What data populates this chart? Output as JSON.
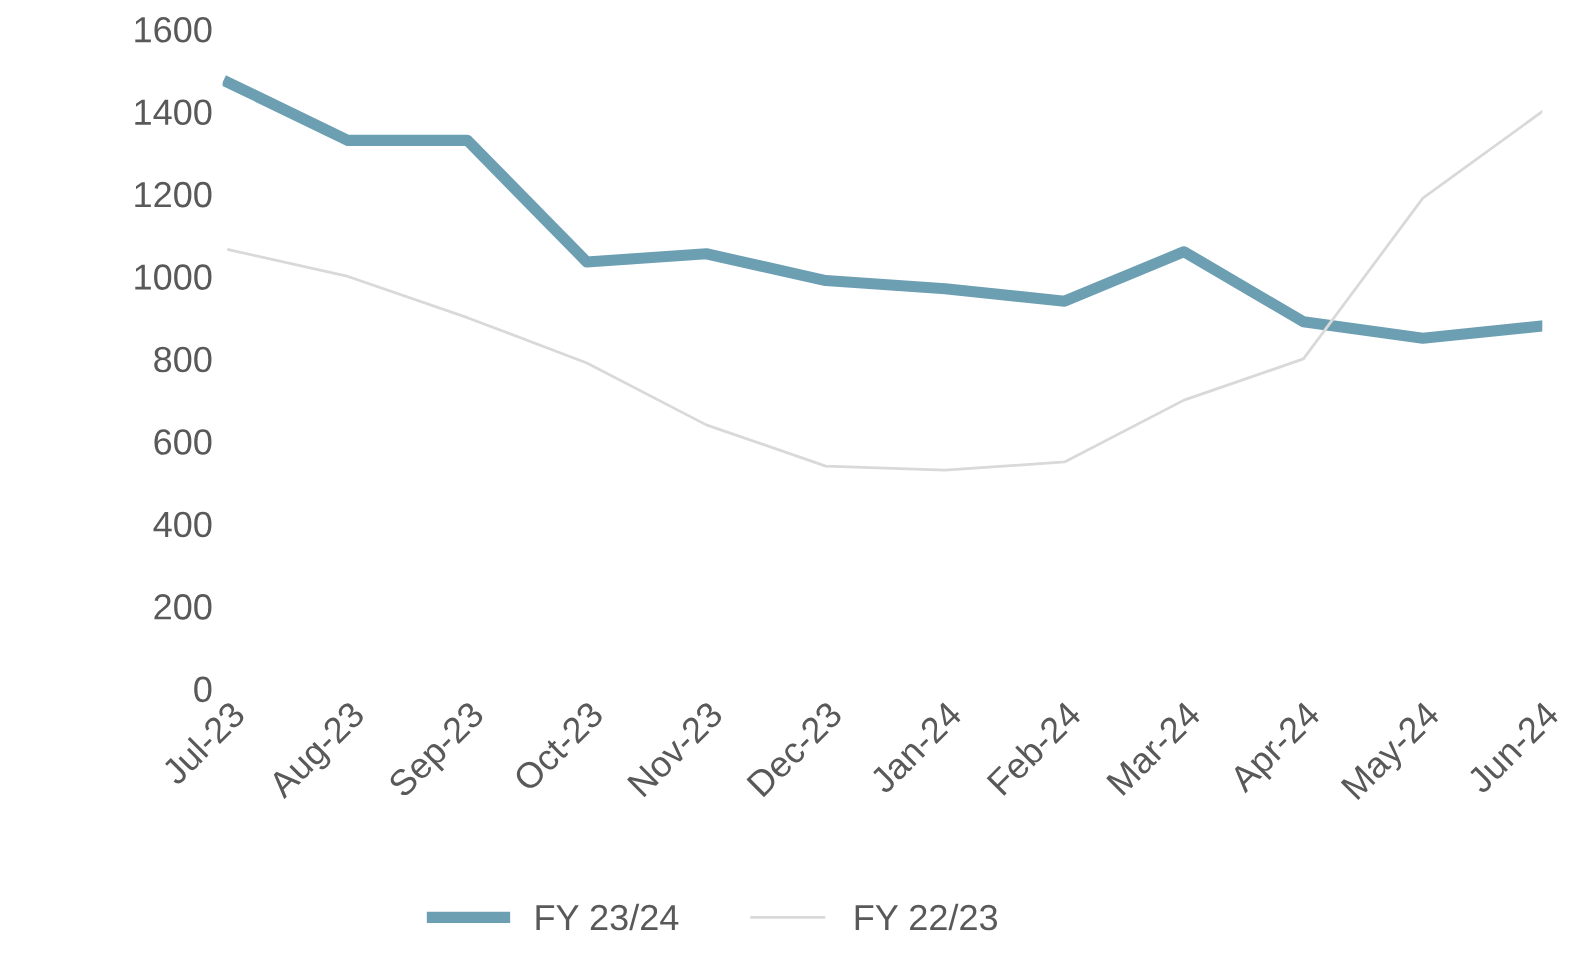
{
  "chart_data": {
    "type": "line",
    "categories": [
      "Jul-23",
      "Aug-23",
      "Sep-23",
      "Oct-23",
      "Nov-23",
      "Dec-23",
      "Jan-24",
      "Feb-24",
      "Mar-24",
      "Apr-24",
      "May-24",
      "Jun-24"
    ],
    "series": [
      {
        "name": "FY 23/24",
        "color": "#6d9fb3",
        "values": [
          1470,
          1330,
          1330,
          1035,
          1055,
          990,
          970,
          940,
          1060,
          890,
          850,
          880
        ]
      },
      {
        "name": "FY 22/23",
        "color": "#d9d9d9",
        "values": [
          1065,
          1000,
          900,
          790,
          640,
          540,
          530,
          550,
          700,
          800,
          1190,
          1400
        ]
      }
    ],
    "ylim": [
      0,
      1600
    ],
    "yticks": [
      0,
      200,
      400,
      600,
      800,
      1000,
      1200,
      1400,
      1600
    ],
    "grid": false,
    "legend": "bottom",
    "marker": "none",
    "line_style": "solid"
  }
}
